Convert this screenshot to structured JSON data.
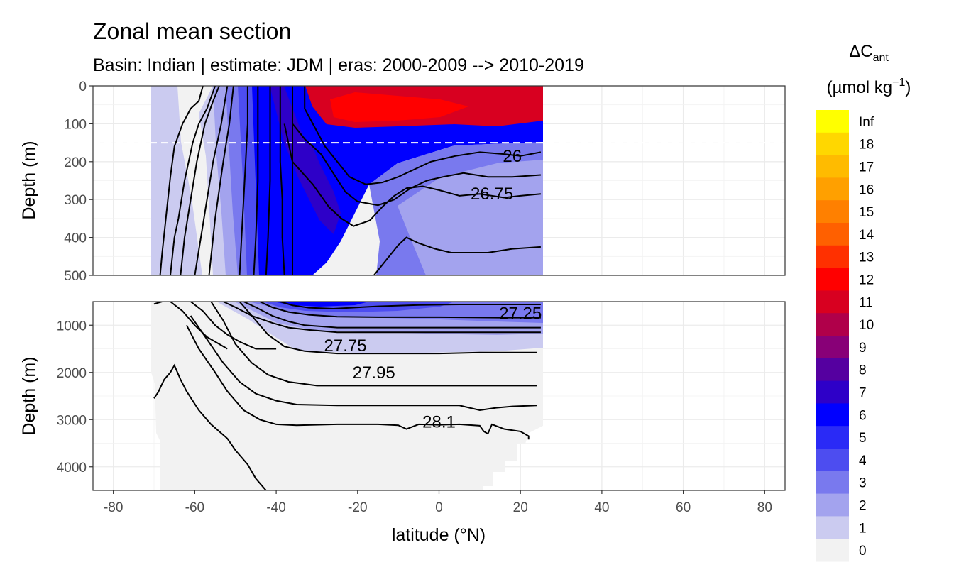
{
  "chart_data": {
    "type": "heatmap",
    "title": "Zonal mean section",
    "subtitle": "Basin: Indian | estimate: JDM  | eras: 2000-2009 --> 2010-2019",
    "xlabel": "latitude (°N)",
    "ylabel": "Depth (m)",
    "xlim": [
      -85,
      85
    ],
    "x_ticks": [
      -80,
      -60,
      -40,
      -20,
      0,
      20,
      40,
      60,
      80
    ],
    "x_tick_labels": [
      "-80",
      "-60",
      "-40",
      "-20",
      "0",
      "20",
      "40",
      "60",
      "80"
    ],
    "data_lat_range": [
      -70,
      25
    ],
    "panels": [
      {
        "name": "upper",
        "ylim": [
          500,
          0
        ],
        "y_ticks": [
          0,
          100,
          200,
          300,
          400,
          500
        ],
        "y_tick_labels": [
          "0",
          "100",
          "200",
          "300",
          "400",
          "500"
        ],
        "reference_line_depth": 150
      },
      {
        "name": "lower",
        "ylim": [
          4500,
          500
        ],
        "y_ticks": [
          1000,
          2000,
          3000,
          4000
        ],
        "y_tick_labels": [
          "1000",
          "2000",
          "3000",
          "4000"
        ]
      }
    ],
    "legend": {
      "title": "ΔC",
      "title_subscript": "ant",
      "unit_prefix": "(µmol kg",
      "unit_exponent": "−1",
      "unit_suffix": ")",
      "breaks": [
        "Inf",
        "18",
        "17",
        "16",
        "15",
        "14",
        "13",
        "12",
        "11",
        "10",
        "9",
        "8",
        "7",
        "6",
        "5",
        "4",
        "3",
        "2",
        "1",
        "0"
      ],
      "colors": [
        "#ffff00",
        "#ffd700",
        "#ffbb00",
        "#ffa000",
        "#ff8000",
        "#ff6000",
        "#ff3000",
        "#ff0000",
        "#d80020",
        "#b0004a",
        "#880077",
        "#5500a0",
        "#2e00c8",
        "#0000ff",
        "#2a2af6",
        "#4d4df0",
        "#7979ee",
        "#a3a3ee",
        "#cbcbf0",
        "#f2f2f2"
      ]
    },
    "isopycnal_labels": [
      {
        "text": "26",
        "lat": 18,
        "depth": 185,
        "panel": "upper"
      },
      {
        "text": "26.75",
        "lat": 13,
        "depth": 285,
        "panel": "upper"
      },
      {
        "text": "27.25",
        "lat": 20,
        "depth": 750,
        "panel": "lower"
      },
      {
        "text": "27.75",
        "lat": -23,
        "depth": 1430,
        "panel": "lower"
      },
      {
        "text": "27.95",
        "lat": -16,
        "depth": 2000,
        "panel": "lower"
      },
      {
        "text": "28.1",
        "lat": 0,
        "depth": 3050,
        "panel": "lower"
      }
    ],
    "isopycnals_upper": [
      [
        [
          -68.5,
          500
        ],
        [
          -68,
          440
        ],
        [
          -67,
          340
        ],
        [
          -66,
          240
        ],
        [
          -65,
          160
        ],
        [
          -63,
          100
        ],
        [
          -61,
          60
        ],
        [
          -59,
          40
        ],
        [
          -58,
          0
        ]
      ],
      [
        [
          -66,
          500
        ],
        [
          -65.5,
          450
        ],
        [
          -65,
          400
        ],
        [
          -64,
          350
        ],
        [
          -62.5,
          250
        ],
        [
          -60.5,
          150
        ],
        [
          -59,
          100
        ],
        [
          -57,
          60
        ],
        [
          -55,
          0
        ]
      ],
      [
        [
          -63.5,
          500
        ],
        [
          -62.5,
          400
        ],
        [
          -61,
          300
        ],
        [
          -59.5,
          200
        ],
        [
          -57.5,
          100
        ],
        [
          -55.5,
          40
        ],
        [
          -54,
          0
        ]
      ],
      [
        [
          -60,
          500
        ],
        [
          -58.5,
          400
        ],
        [
          -57,
          300
        ],
        [
          -55.5,
          200
        ],
        [
          -53.5,
          100
        ],
        [
          -52,
          0
        ]
      ],
      [
        [
          -56.5,
          500
        ],
        [
          -55,
          350
        ],
        [
          -53,
          200
        ],
        [
          -51.5,
          100
        ],
        [
          -50.5,
          0
        ]
      ],
      [
        [
          -49,
          500
        ],
        [
          -48.5,
          400
        ],
        [
          -48,
          300
        ],
        [
          -47.5,
          200
        ],
        [
          -47,
          100
        ],
        [
          -47,
          0
        ]
      ],
      [
        [
          -45.5,
          500
        ],
        [
          -45,
          400
        ],
        [
          -44.5,
          250
        ],
        [
          -44.5,
          100
        ],
        [
          -44.5,
          0
        ]
      ],
      [
        [
          -42.5,
          500
        ],
        [
          -42,
          400
        ],
        [
          -41.5,
          250
        ],
        [
          -41.5,
          100
        ],
        [
          -41.5,
          0
        ]
      ],
      [
        [
          -38,
          500
        ],
        [
          -38.5,
          400
        ],
        [
          -38.5,
          300
        ],
        [
          -39,
          200
        ],
        [
          -39,
          100
        ],
        [
          -39,
          0
        ]
      ],
      [
        [
          -36,
          500
        ],
        [
          -36,
          400
        ],
        [
          -36,
          200
        ],
        [
          -36,
          100
        ],
        [
          -36,
          0
        ]
      ],
      [
        [
          -33,
          0
        ],
        [
          -33,
          60
        ],
        [
          -31,
          100
        ],
        [
          -28,
          160
        ],
        [
          -25,
          200
        ],
        [
          -22,
          240
        ],
        [
          -18,
          260
        ],
        [
          -14,
          255
        ],
        [
          -10,
          240
        ],
        [
          -6,
          220
        ],
        [
          -2,
          200
        ],
        [
          4,
          185
        ],
        [
          10,
          175
        ],
        [
          16,
          180
        ],
        [
          20,
          185
        ],
        [
          25,
          175
        ]
      ],
      [
        [
          -36,
          100
        ],
        [
          -33,
          140
        ],
        [
          -29,
          180
        ],
        [
          -26,
          230
        ],
        [
          -23,
          280
        ],
        [
          -20,
          305
        ],
        [
          -15,
          315
        ],
        [
          -11,
          300
        ],
        [
          -7,
          270
        ],
        [
          -3,
          250
        ],
        [
          1,
          240
        ],
        [
          6,
          230
        ],
        [
          12,
          240
        ],
        [
          18,
          240
        ],
        [
          25,
          235
        ]
      ],
      [
        [
          -38,
          100
        ],
        [
          -36,
          200
        ],
        [
          -31,
          260
        ],
        [
          -27,
          320
        ],
        [
          -24,
          350
        ],
        [
          -21,
          370
        ],
        [
          -17,
          355
        ],
        [
          -14,
          320
        ],
        [
          -11,
          290
        ],
        [
          -8,
          270
        ],
        [
          -4,
          265
        ],
        [
          0,
          275
        ],
        [
          5,
          290
        ],
        [
          10,
          285
        ],
        [
          16,
          295
        ],
        [
          20,
          290
        ],
        [
          25,
          285
        ]
      ],
      [
        [
          -16,
          500
        ],
        [
          -13,
          460
        ],
        [
          -10,
          420
        ],
        [
          -8,
          400
        ],
        [
          -5,
          415
        ],
        [
          -1,
          430
        ],
        [
          3,
          440
        ],
        [
          8,
          440
        ],
        [
          12,
          440
        ],
        [
          18,
          430
        ],
        [
          25,
          425
        ]
      ]
    ],
    "isopycnals_lower": [
      [
        [
          -70,
          550
        ],
        [
          -68,
          500
        ]
      ],
      [
        [
          -66,
          500
        ],
        [
          -63,
          700
        ],
        [
          -60,
          1000
        ],
        [
          -57,
          1250
        ],
        [
          -55,
          1350
        ],
        [
          -52,
          1500
        ]
      ],
      [
        [
          -61,
          500
        ],
        [
          -58,
          700
        ],
        [
          -55,
          1000
        ],
        [
          -52,
          1200
        ],
        [
          -49,
          1350
        ],
        [
          -45,
          1500
        ],
        [
          -40,
          1500
        ]
      ],
      [
        [
          -53,
          500
        ],
        [
          -50,
          620
        ],
        [
          -46,
          800
        ],
        [
          -41,
          950
        ],
        [
          -37,
          1050
        ],
        [
          -32,
          1100
        ],
        [
          -25,
          1150
        ],
        [
          -18,
          1150
        ],
        [
          -10,
          1150
        ],
        [
          0,
          1150
        ],
        [
          10,
          1150
        ],
        [
          25,
          1150
        ]
      ],
      [
        [
          -48,
          500
        ],
        [
          -45,
          620
        ],
        [
          -41,
          800
        ],
        [
          -37,
          920
        ],
        [
          -33,
          1000
        ],
        [
          -25,
          1050
        ],
        [
          -15,
          1050
        ],
        [
          0,
          1050
        ],
        [
          15,
          1050
        ],
        [
          25,
          1050
        ]
      ],
      [
        [
          -44,
          500
        ],
        [
          -41,
          620
        ],
        [
          -37,
          720
        ],
        [
          -32,
          780
        ],
        [
          -25,
          820
        ],
        [
          -15,
          830
        ],
        [
          0,
          830
        ],
        [
          15,
          840
        ],
        [
          25,
          840
        ]
      ],
      [
        [
          -39,
          500
        ],
        [
          -36,
          580
        ],
        [
          -32,
          630
        ],
        [
          -26,
          650
        ],
        [
          -15,
          600
        ],
        [
          -5,
          570
        ],
        [
          5,
          560
        ],
        [
          15,
          560
        ],
        [
          25,
          560
        ]
      ],
      [
        [
          -49,
          500
        ],
        [
          -46,
          800
        ],
        [
          -42,
          1200
        ],
        [
          -38,
          1450
        ],
        [
          -33,
          1550
        ],
        [
          -25,
          1600
        ],
        [
          -15,
          1600
        ],
        [
          0,
          1600
        ],
        [
          10,
          1580
        ],
        [
          24,
          1580
        ]
      ],
      [
        [
          -56,
          500
        ],
        [
          -53,
          900
        ],
        [
          -50,
          1400
        ],
        [
          -46,
          1800
        ],
        [
          -42,
          2050
        ],
        [
          -37,
          2200
        ],
        [
          -30,
          2280
        ],
        [
          -20,
          2280
        ],
        [
          -10,
          2280
        ],
        [
          0,
          2280
        ],
        [
          10,
          2280
        ],
        [
          24,
          2280
        ]
      ],
      [
        [
          -61,
          800
        ],
        [
          -57,
          1300
        ],
        [
          -53,
          1800
        ],
        [
          -49,
          2200
        ],
        [
          -45,
          2450
        ],
        [
          -40,
          2600
        ],
        [
          -35,
          2680
        ],
        [
          -25,
          2700
        ],
        [
          -15,
          2700
        ],
        [
          -5,
          2700
        ],
        [
          5,
          2700
        ],
        [
          10,
          2800
        ],
        [
          14,
          2750
        ],
        [
          18,
          2720
        ],
        [
          24,
          2700
        ]
      ],
      [
        [
          -62,
          1000
        ],
        [
          -59,
          1500
        ],
        [
          -55,
          2000
        ],
        [
          -52,
          2400
        ],
        [
          -48,
          2800
        ],
        [
          -44,
          3000
        ],
        [
          -40,
          3100
        ],
        [
          -35,
          3120
        ],
        [
          -25,
          3100
        ],
        [
          -15,
          3100
        ],
        [
          -10,
          3120
        ],
        [
          -8,
          3200
        ],
        [
          -5,
          3100
        ],
        [
          0,
          3110
        ],
        [
          5,
          3100
        ],
        [
          10,
          3130
        ],
        [
          11,
          3250
        ],
        [
          12,
          3300
        ],
        [
          13,
          3100
        ],
        [
          16,
          3200
        ],
        [
          20,
          3250
        ],
        [
          22,
          3350
        ],
        [
          22,
          3420
        ]
      ],
      [
        [
          -70,
          2550
        ],
        [
          -69,
          2420
        ],
        [
          -67.5,
          2150
        ],
        [
          -66,
          2000
        ],
        [
          -65,
          1850
        ],
        [
          -63.5,
          2150
        ],
        [
          -62,
          2400
        ],
        [
          -59,
          2800
        ],
        [
          -56,
          3100
        ],
        [
          -52,
          3400
        ],
        [
          -50,
          3650
        ],
        [
          -47,
          3950
        ],
        [
          -45,
          4250
        ],
        [
          -43,
          4450
        ],
        [
          -42.5,
          4500
        ]
      ]
    ]
  }
}
